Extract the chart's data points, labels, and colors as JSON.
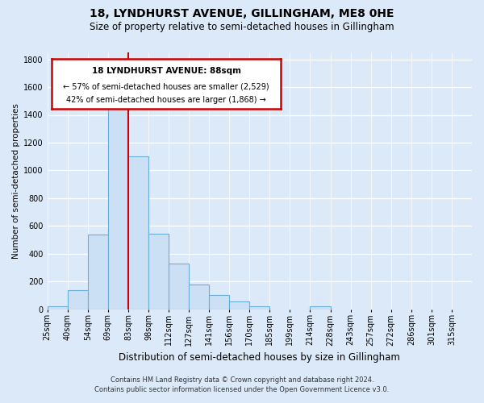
{
  "title": "18, LYNDHURST AVENUE, GILLINGHAM, ME8 0HE",
  "subtitle": "Size of property relative to semi-detached houses in Gillingham",
  "xlabel": "Distribution of semi-detached houses by size in Gillingham",
  "ylabel": "Number of semi-detached properties",
  "bin_labels": [
    "25sqm",
    "40sqm",
    "54sqm",
    "69sqm",
    "83sqm",
    "98sqm",
    "112sqm",
    "127sqm",
    "141sqm",
    "156sqm",
    "170sqm",
    "185sqm",
    "199sqm",
    "214sqm",
    "228sqm",
    "243sqm",
    "257sqm",
    "272sqm",
    "286sqm",
    "301sqm",
    "315sqm"
  ],
  "bar_heights": [
    20,
    140,
    540,
    1450,
    1100,
    545,
    330,
    175,
    105,
    55,
    20,
    0,
    0,
    20,
    0,
    0,
    0,
    0,
    0,
    0,
    0
  ],
  "bar_color": "#cce0f5",
  "bar_edge_color": "#6aaed6",
  "bar_width": 1.0,
  "vline_x": 4,
  "vline_color": "#cc0000",
  "ylim": [
    0,
    1850
  ],
  "yticks": [
    0,
    200,
    400,
    600,
    800,
    1000,
    1200,
    1400,
    1600,
    1800
  ],
  "annotation_title": "18 LYNDHURST AVENUE: 88sqm",
  "annotation_line1": "← 57% of semi-detached houses are smaller (2,529)",
  "annotation_line2": "42% of semi-detached houses are larger (1,868) →",
  "footer_line1": "Contains HM Land Registry data © Crown copyright and database right 2024.",
  "footer_line2": "Contains public sector information licensed under the Open Government Licence v3.0.",
  "bg_color": "#dce9f8",
  "plot_bg_color": "#dce9f8",
  "grid_color": "#ffffff",
  "title_fontsize": 10,
  "subtitle_fontsize": 8.5,
  "xlabel_fontsize": 8.5,
  "ylabel_fontsize": 7.5,
  "tick_fontsize": 7,
  "footer_fontsize": 6
}
